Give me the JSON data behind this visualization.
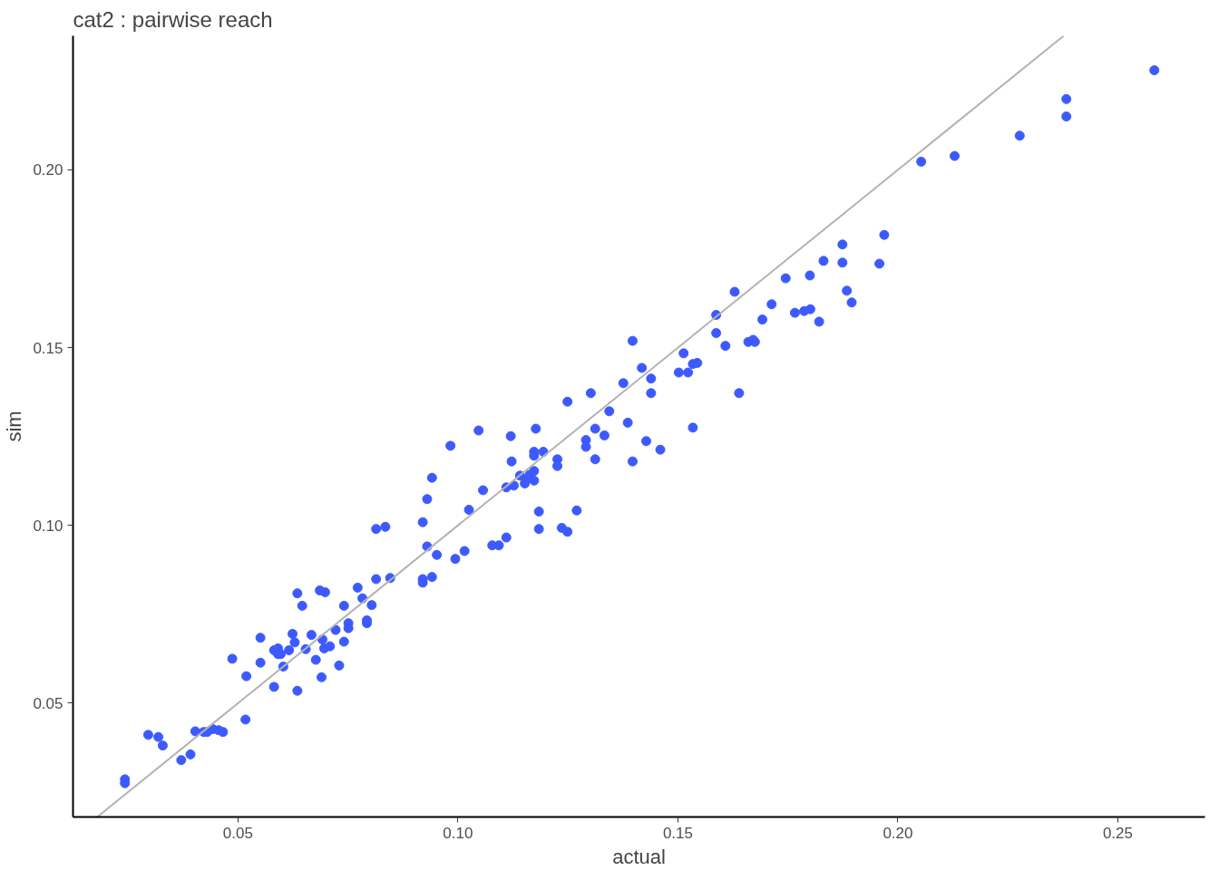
{
  "chart_data": {
    "type": "scatter",
    "title": "cat2 : pairwise reach",
    "xlabel": "actual",
    "ylabel": "sim",
    "xlim": [
      0.0125,
      0.2698
    ],
    "ylim": [
      0.018,
      0.2377
    ],
    "xticks": [
      {
        "value": 0.05,
        "label": "0.05"
      },
      {
        "value": 0.1,
        "label": "0.10"
      },
      {
        "value": 0.15,
        "label": "0.15"
      },
      {
        "value": 0.2,
        "label": "0.20"
      },
      {
        "value": 0.25,
        "label": "0.25"
      }
    ],
    "yticks": [
      {
        "value": 0.05,
        "label": "0.05"
      },
      {
        "value": 0.1,
        "label": "0.10"
      },
      {
        "value": 0.15,
        "label": "0.15"
      },
      {
        "value": 0.2,
        "label": "0.20"
      }
    ],
    "grid": false,
    "series": [
      {
        "marker": "circle",
        "color": "#3d5aff",
        "x": [
          0.0243,
          0.0243,
          0.0296,
          0.0319,
          0.0329,
          0.0371,
          0.0392,
          0.0403,
          0.0422,
          0.043,
          0.0443,
          0.0456,
          0.0466,
          0.0487,
          0.0517,
          0.0519,
          0.0551,
          0.0551,
          0.0582,
          0.0582,
          0.0591,
          0.0597,
          0.0591,
          0.0603,
          0.0616,
          0.0624,
          0.0629,
          0.0635,
          0.0635,
          0.0646,
          0.0654,
          0.0667,
          0.0677,
          0.0686,
          0.0698,
          0.069,
          0.0692,
          0.0696,
          0.0709,
          0.0722,
          0.073,
          0.0741,
          0.0741,
          0.0751,
          0.0751,
          0.0772,
          0.0783,
          0.0793,
          0.0793,
          0.0804,
          0.0814,
          0.0814,
          0.0835,
          0.0846,
          0.092,
          0.092,
          0.092,
          0.093,
          0.093,
          0.0941,
          0.0941,
          0.0952,
          0.0983,
          0.0994,
          0.1015,
          0.1025,
          0.1047,
          0.1057,
          0.1078,
          0.1093,
          0.111,
          0.111,
          0.112,
          0.1122,
          0.1127,
          0.1141,
          0.1152,
          0.1156,
          0.1163,
          0.1173,
          0.1173,
          0.1173,
          0.1173,
          0.1177,
          0.1184,
          0.1184,
          0.1194,
          0.1226,
          0.1226,
          0.1236,
          0.1249,
          0.1249,
          0.127,
          0.1291,
          0.1291,
          0.1302,
          0.1312,
          0.1312,
          0.1333,
          0.1344,
          0.1376,
          0.1386,
          0.1397,
          0.1397,
          0.1418,
          0.1428,
          0.1439,
          0.1439,
          0.146,
          0.1502,
          0.1513,
          0.1523,
          0.1534,
          0.1544,
          0.1534,
          0.1587,
          0.1587,
          0.1608,
          0.1629,
          0.1639,
          0.166,
          0.1671,
          0.1675,
          0.1692,
          0.1713,
          0.1745,
          0.1766,
          0.1787,
          0.1801,
          0.18,
          0.1821,
          0.1831,
          0.1874,
          0.1874,
          0.1884,
          0.1895,
          0.1958,
          0.1969,
          0.2053,
          0.2129,
          0.2277,
          0.2383,
          0.2383,
          0.2583
        ],
        "values": [
          0.0286,
          0.0275,
          0.0411,
          0.0405,
          0.0381,
          0.034,
          0.0356,
          0.0421,
          0.0419,
          0.0419,
          0.0427,
          0.0424,
          0.0419,
          0.0625,
          0.0454,
          0.0576,
          0.0684,
          0.0614,
          0.0546,
          0.0649,
          0.0654,
          0.0638,
          0.0638,
          0.0603,
          0.0649,
          0.0695,
          0.0671,
          0.0809,
          0.0535,
          0.0774,
          0.0652,
          0.0692,
          0.0622,
          0.0817,
          0.0812,
          0.0573,
          0.0679,
          0.0654,
          0.066,
          0.0706,
          0.0606,
          0.0774,
          0.0673,
          0.0725,
          0.0711,
          0.0825,
          0.0795,
          0.0725,
          0.0733,
          0.0776,
          0.0849,
          0.099,
          0.0996,
          0.0852,
          0.1009,
          0.0849,
          0.0839,
          0.1074,
          0.0941,
          0.1134,
          0.0855,
          0.0917,
          0.1224,
          0.0906,
          0.0928,
          0.1044,
          0.1267,
          0.1099,
          0.0944,
          0.0944,
          0.0966,
          0.1107,
          0.1251,
          0.118,
          0.1112,
          0.114,
          0.1118,
          0.1131,
          0.1142,
          0.1153,
          0.1126,
          0.1196,
          0.1207,
          0.1272,
          0.1039,
          0.099,
          0.1207,
          0.1186,
          0.1167,
          0.0993,
          0.0982,
          0.1348,
          0.1042,
          0.124,
          0.1221,
          0.1372,
          0.1272,
          0.1186,
          0.1253,
          0.1321,
          0.14,
          0.1289,
          0.1519,
          0.118,
          0.1443,
          0.1237,
          0.1413,
          0.1372,
          0.1213,
          0.143,
          0.1484,
          0.143,
          0.1454,
          0.1457,
          0.1275,
          0.1592,
          0.1541,
          0.1505,
          0.1657,
          0.1372,
          0.1516,
          0.1522,
          0.1516,
          0.1579,
          0.1622,
          0.1695,
          0.1598,
          0.1603,
          0.1608,
          0.1703,
          0.1573,
          0.1744,
          0.179,
          0.1739,
          0.166,
          0.1627,
          0.1736,
          0.1817,
          0.2023,
          0.2039,
          0.2096,
          0.2199,
          0.215,
          0.228
        ]
      },
      {
        "type": "line",
        "color": "#b3b3b3",
        "x": [
          0.018,
          0.2377
        ],
        "values": [
          0.018,
          0.2377
        ]
      }
    ]
  }
}
